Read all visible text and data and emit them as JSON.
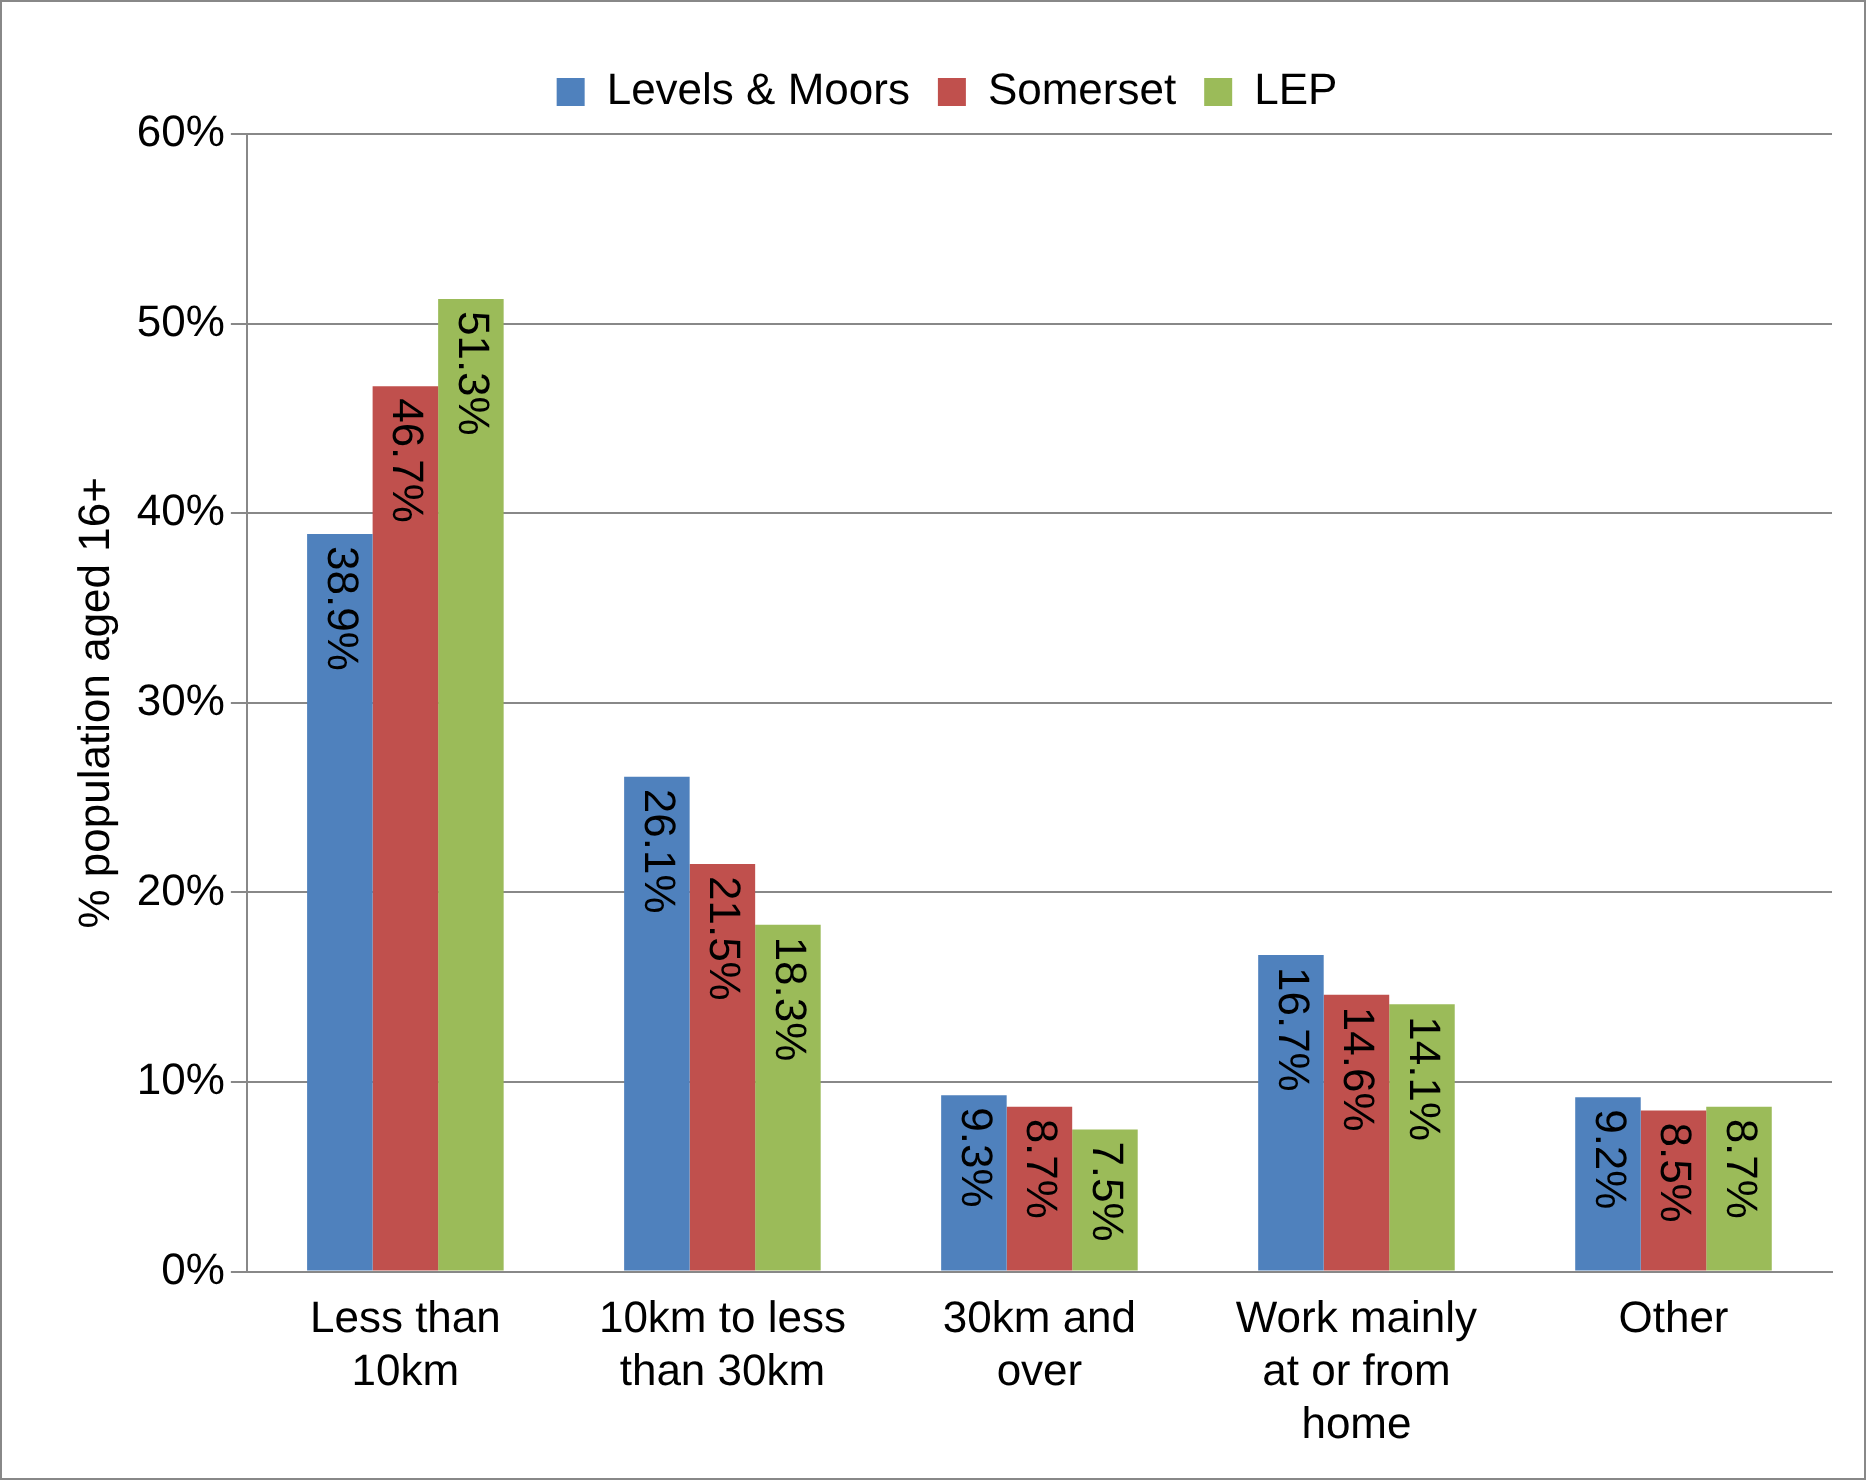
{
  "chart_data": {
    "type": "bar",
    "ylabel": "% population aged 16+",
    "categories": [
      "Less than 10km",
      "10km to less than 30km",
      "30km and over",
      "Work mainly at or from home",
      "Other"
    ],
    "series": [
      {
        "name": "Levels & Moors",
        "color": "#4f81bd",
        "values": [
          38.9,
          26.1,
          9.3,
          16.7,
          9.2
        ],
        "value_labels": [
          "38.9%",
          "26.1%",
          "9.3%",
          "16.7%",
          "9.2%"
        ]
      },
      {
        "name": "Somerset",
        "color": "#c0504d",
        "values": [
          46.7,
          21.5,
          8.7,
          14.6,
          8.5
        ],
        "value_labels": [
          "46.7%",
          "21.5%",
          "8.7%",
          "14.6%",
          "8.5%"
        ]
      },
      {
        "name": "LEP",
        "color": "#9bbb59",
        "values": [
          51.3,
          18.3,
          7.5,
          14.1,
          8.7
        ],
        "value_labels": [
          "51.3%",
          "18.3%",
          "7.5%",
          "14.1%",
          "8.7%"
        ]
      }
    ],
    "ylim": [
      0,
      60
    ],
    "yticks": [
      {
        "value": 0,
        "label": "0%"
      },
      {
        "value": 10,
        "label": "10%"
      },
      {
        "value": 20,
        "label": "20%"
      },
      {
        "value": 30,
        "label": "30%"
      },
      {
        "value": 40,
        "label": "40%"
      },
      {
        "value": 50,
        "label": "50%"
      },
      {
        "value": 60,
        "label": "60%"
      }
    ],
    "grid": "y",
    "legend": "top"
  }
}
